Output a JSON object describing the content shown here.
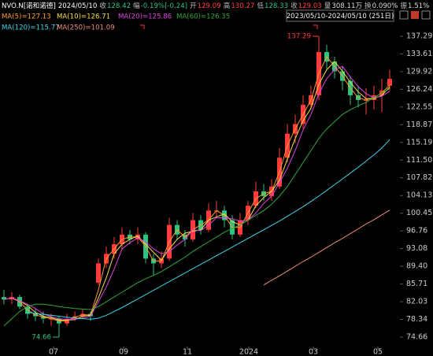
{
  "chart_data": {
    "type": "candlestick",
    "header": {
      "symbol": "NVO.N[诺和诺德]",
      "date": "2024/05/10",
      "fields": [
        {
          "label": "收",
          "value": "128.42",
          "color": "#2ec27e"
        },
        {
          "label": "幅",
          "value": "-0.19%[-0.24]",
          "color": "#2ec27e"
        },
        {
          "label": "开",
          "value": "129.09",
          "color": "#ff4040"
        },
        {
          "label": "高",
          "value": "130.27",
          "color": "#ff4040"
        },
        {
          "label": "低",
          "value": "128.33",
          "color": "#2ec27e"
        },
        {
          "label": "收",
          "value": "129.03",
          "color": "#ff4040"
        },
        {
          "label": "量",
          "value": "308.11万",
          "color": "#dddddd"
        },
        {
          "label": "换",
          "value": "0.090%",
          "color": "#dddddd"
        },
        {
          "label": "振",
          "value": "1.51%",
          "color": "#dddddd"
        }
      ],
      "range": "2023/05/10-2024/05/10 (251日)"
    },
    "up_color": "#ff3b3b",
    "down_color": "#2ec27e",
    "candles": [
      [
        83,
        84.5,
        81.5,
        82.5
      ],
      [
        82.5,
        84,
        81.5,
        83
      ],
      [
        83,
        83.5,
        80.5,
        81
      ],
      [
        81,
        81.5,
        78.5,
        79.5
      ],
      [
        79.5,
        80.5,
        78,
        79
      ],
      [
        79,
        80,
        77.5,
        78.5
      ],
      [
        78.5,
        79.5,
        77,
        78.5
      ],
      [
        78.5,
        79,
        74.66,
        77.5
      ],
      [
        77.5,
        79.5,
        77,
        78.5
      ],
      [
        78.5,
        80,
        78,
        79
      ],
      [
        79,
        80.5,
        78.5,
        79.5
      ],
      [
        79.5,
        80,
        78,
        79
      ],
      [
        86,
        91,
        85.5,
        90
      ],
      [
        90,
        93.5,
        89,
        92
      ],
      [
        92,
        95.5,
        91,
        94
      ],
      [
        94,
        97.5,
        93,
        96
      ],
      [
        96,
        97,
        94,
        95
      ],
      [
        95,
        97.5,
        94,
        96
      ],
      [
        96,
        96.5,
        90,
        91
      ],
      [
        91,
        92,
        87.5,
        90
      ],
      [
        90,
        92.5,
        89,
        91
      ],
      [
        91,
        99.5,
        90.5,
        98
      ],
      [
        98,
        99,
        95,
        96
      ],
      [
        96,
        97,
        93.5,
        95
      ],
      [
        95,
        100.5,
        94.5,
        99
      ],
      [
        99,
        100,
        96,
        97
      ],
      [
        97,
        102.5,
        96.5,
        101
      ],
      [
        101,
        103,
        99.5,
        101
      ],
      [
        101,
        102,
        97.5,
        99
      ],
      [
        99,
        100,
        95,
        96
      ],
      [
        96,
        100.5,
        95.5,
        99
      ],
      [
        99,
        103,
        98,
        102
      ],
      [
        102,
        107,
        101.5,
        105
      ],
      [
        105,
        106.5,
        103,
        104
      ],
      [
        104,
        107.5,
        103,
        106
      ],
      [
        106,
        114,
        105.5,
        112
      ],
      [
        112,
        119,
        111,
        117
      ],
      [
        117,
        121,
        115,
        119
      ],
      [
        119,
        125,
        118,
        123
      ],
      [
        123,
        127,
        122,
        125
      ],
      [
        125,
        137.29,
        124,
        134
      ],
      [
        134,
        135.5,
        130.5,
        132
      ],
      [
        132,
        133,
        128.5,
        130
      ],
      [
        130,
        131,
        126,
        128
      ],
      [
        128,
        129,
        123,
        125
      ],
      [
        125,
        127,
        122.5,
        124
      ],
      [
        124,
        126.5,
        121,
        124
      ],
      [
        124,
        127,
        122,
        125
      ],
      [
        125,
        128.5,
        121.5,
        126
      ],
      [
        127,
        130.3,
        126,
        128.4
      ]
    ],
    "series": [
      {
        "name": "MA(5)=127.13",
        "color": "#ff9a2e",
        "values": [
          82.5,
          82.8,
          82,
          80.3,
          79.3,
          78.8,
          78.5,
          78,
          78,
          78.8,
          79.3,
          79.3,
          84.5,
          91,
          93,
          95,
          95.5,
          95.5,
          93.5,
          90.5,
          90.5,
          94.5,
          97,
          95.5,
          97,
          98,
          99,
          101,
          100,
          97.5,
          97.5,
          100.5,
          103.5,
          104.5,
          105,
          109,
          114.5,
          118,
          121,
          124,
          129.5,
          133,
          131,
          129,
          126.5,
          124.5,
          124,
          124.5,
          125.5,
          127.13
        ]
      },
      {
        "name": "MA(10)=126.71",
        "color": "#f5e04a",
        "values": [
          82.5,
          82.8,
          82.2,
          81.2,
          79.8,
          79,
          78.7,
          78.2,
          78.2,
          78.3,
          79,
          79.2,
          82.8,
          87,
          92,
          94,
          95,
          95.7,
          94,
          92.3,
          90.7,
          93,
          95,
          96.3,
          96.7,
          97,
          99,
          99.7,
          100.3,
          98.7,
          98,
          99,
          102,
          103.7,
          105,
          107.3,
          111.7,
          116,
          119.7,
          122.3,
          127.3,
          130.3,
          132,
          130,
          127.7,
          125.7,
          124.3,
          124.3,
          125,
          126.71
        ]
      },
      {
        "name": "MA(20)=125.86",
        "color": "#e040e0",
        "values": [
          82.5,
          82.8,
          82.2,
          81.5,
          80.6,
          79.5,
          78.9,
          78.5,
          78.3,
          78.4,
          78.6,
          79,
          82,
          85.1,
          88.8,
          93,
          94.3,
          95.3,
          94.5,
          93,
          92,
          92.5,
          93.8,
          95,
          97,
          96.8,
          98,
          99.5,
          99.5,
          99.3,
          98.8,
          99,
          100.5,
          102.5,
          104,
          106.8,
          109.8,
          113.5,
          117.8,
          121,
          125.3,
          128.5,
          130.3,
          131,
          128.8,
          126.8,
          125.3,
          124.5,
          124.8,
          125.86
        ]
      },
      {
        "name": "MA(60)=126.35",
        "color": "#2fa83a",
        "values": [
          77,
          78.5,
          80,
          81,
          81.5,
          81.5,
          81.3,
          81,
          80.8,
          80.6,
          80.5,
          80.4,
          81,
          82,
          83,
          84,
          85,
          86,
          86.8,
          87.5,
          88.3,
          89.3,
          90.3,
          91.3,
          92.5,
          93.5,
          94.5,
          95.5,
          96.5,
          97.3,
          98,
          99,
          100,
          101,
          102.3,
          104,
          106,
          108.5,
          111,
          113.5,
          116,
          118,
          119.5,
          121,
          122,
          122.8,
          123.5,
          124.5,
          125.5,
          126.35
        ]
      },
      {
        "name": "MA(120)=115.77",
        "color": "#3fd4e8",
        "values": [
          null,
          null,
          null,
          79.8,
          79.6,
          79.4,
          79.2,
          79,
          78.8,
          78.6,
          78.5,
          78.4,
          78.6,
          79.2,
          80,
          80.8,
          81.7,
          82.6,
          83.5,
          84.4,
          85.3,
          86.2,
          87.1,
          88,
          88.9,
          89.8,
          90.7,
          91.6,
          92.5,
          93.4,
          94.3,
          95.2,
          96.1,
          97,
          97.9,
          98.8,
          99.8,
          100.8,
          101.8,
          102.9,
          104,
          105.2,
          106.4,
          107.6,
          108.8,
          110,
          111.3,
          112.6,
          114,
          115.77
        ]
      },
      {
        "name": "MA(250)=101.09",
        "color": "#f08a7a",
        "values": [
          null,
          null,
          null,
          null,
          null,
          null,
          null,
          null,
          null,
          null,
          null,
          null,
          null,
          null,
          null,
          null,
          null,
          null,
          null,
          null,
          null,
          null,
          null,
          null,
          null,
          null,
          null,
          null,
          null,
          null,
          null,
          null,
          null,
          85.5,
          86.5,
          87.4,
          88.4,
          89.4,
          90.4,
          91.3,
          92.3,
          93.3,
          94.3,
          95.2,
          96.2,
          97.2,
          98.2,
          99.1,
          100.1,
          101.09
        ]
      }
    ],
    "high_label": "137.29",
    "low_label": "74.66",
    "xlim": [
      -0.5,
      50
    ],
    "xticks": [
      {
        "value": 6.3,
        "label": "07"
      },
      {
        "value": 15.2,
        "label": "09"
      },
      {
        "value": 23.3,
        "label": "11"
      },
      {
        "value": 31.1,
        "label": "2024"
      },
      {
        "value": 39.3,
        "label": "03"
      },
      {
        "value": 47.5,
        "label": "05"
      }
    ],
    "ylim": [
      72.69,
      139.91
    ],
    "yticks": [
      137.29,
      133.61,
      129.92,
      126.24,
      122.55,
      118.87,
      115.19,
      {
        "value": 111.5,
        "label": "111.50"
      },
      107.82,
      104.13,
      100.45,
      96.76,
      93.08,
      {
        "value": 89.4,
        "label": "89.40"
      },
      85.71,
      82.03,
      78.34,
      74.66
    ]
  }
}
